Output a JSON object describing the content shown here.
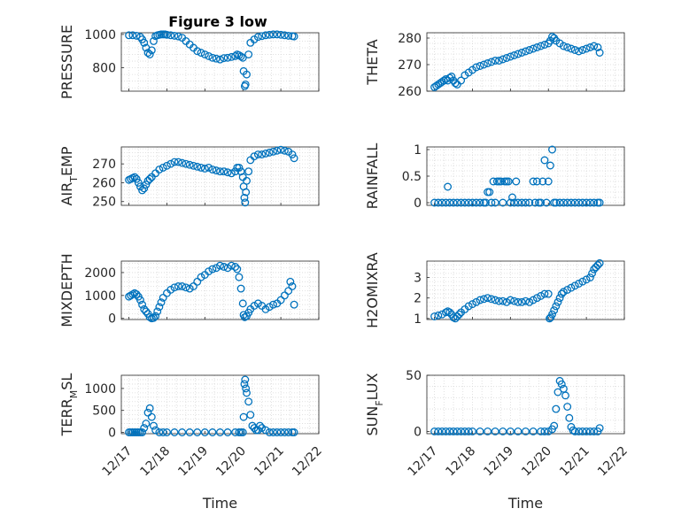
{
  "figure": {
    "title": "Figure 3 low",
    "marker_color": "#0072BD",
    "axis_color": "#262626",
    "grid_color": "#d9d9d9"
  },
  "chart_data": [
    {
      "type": "scatter",
      "id": "pressure",
      "ylabel": "PRESSURE",
      "xlabel": "",
      "ylim": [
        660,
        1010
      ],
      "yticks": [
        800,
        1000
      ],
      "show_xticklabels": false,
      "grid": true,
      "x": [
        0.0,
        0.1,
        0.2,
        0.3,
        0.35,
        0.4,
        0.45,
        0.5,
        0.55,
        0.6,
        0.65,
        0.7,
        0.75,
        0.8,
        0.85,
        0.9,
        0.95,
        1.0,
        1.1,
        1.2,
        1.3,
        1.4,
        1.5,
        1.6,
        1.7,
        1.8,
        1.9,
        2.0,
        2.1,
        2.2,
        2.3,
        2.4,
        2.5,
        2.6,
        2.7,
        2.8,
        2.85,
        2.9,
        2.95,
        3.0,
        3.02,
        3.05,
        3.07,
        3.1,
        3.15,
        3.2,
        3.3,
        3.4,
        3.5,
        3.6,
        3.7,
        3.8,
        3.9,
        4.0,
        4.1,
        4.2,
        4.3,
        4.35
      ],
      "y": [
        995,
        995,
        992,
        985,
        970,
        950,
        920,
        890,
        880,
        905,
        960,
        990,
        995,
        998,
        1000,
        1000,
        1000,
        998,
        995,
        992,
        988,
        980,
        960,
        940,
        920,
        900,
        890,
        880,
        870,
        860,
        855,
        850,
        858,
        860,
        865,
        870,
        880,
        875,
        868,
        860,
        780,
        690,
        700,
        760,
        880,
        950,
        970,
        985,
        990,
        995,
        998,
        1000,
        1000,
        998,
        995,
        992,
        990,
        988
      ]
    },
    {
      "type": "scatter",
      "id": "theta",
      "ylabel": "THETA",
      "xlabel": "",
      "ylim": [
        260,
        282
      ],
      "yticks": [
        260,
        270,
        280
      ],
      "show_xticklabels": false,
      "grid": true,
      "x": [
        0.0,
        0.05,
        0.1,
        0.15,
        0.2,
        0.25,
        0.3,
        0.35,
        0.4,
        0.45,
        0.5,
        0.55,
        0.6,
        0.7,
        0.8,
        0.9,
        1.0,
        1.1,
        1.2,
        1.3,
        1.4,
        1.5,
        1.6,
        1.7,
        1.8,
        1.9,
        2.0,
        2.1,
        2.2,
        2.3,
        2.4,
        2.5,
        2.6,
        2.7,
        2.8,
        2.9,
        3.0,
        3.05,
        3.1,
        3.15,
        3.2,
        3.3,
        3.4,
        3.5,
        3.6,
        3.7,
        3.8,
        3.9,
        4.0,
        4.1,
        4.2,
        4.3,
        4.35
      ],
      "y": [
        261.5,
        262,
        262.5,
        263,
        263.5,
        264,
        264.5,
        264,
        265,
        265.5,
        264,
        263,
        262.5,
        264,
        266,
        267,
        268,
        269,
        269.5,
        270,
        270.5,
        271,
        271.5,
        271.5,
        272,
        272.5,
        273,
        273.5,
        274,
        274.5,
        275,
        275.5,
        276,
        276.5,
        277,
        277.5,
        278,
        279,
        280.5,
        280,
        279,
        278,
        277,
        276.5,
        276,
        275.5,
        275,
        275.5,
        276,
        276.5,
        277,
        276.5,
        274.5
      ]
    },
    {
      "type": "scatter",
      "id": "air_temp",
      "ylabel": "AIR_TEMP",
      "ylabel_main": "AIR",
      "ylabel_sub": "T",
      "ylabel_rest": "EMP",
      "xlabel": "",
      "ylim": [
        248,
        279
      ],
      "yticks": [
        250,
        260,
        270
      ],
      "show_xticklabels": false,
      "grid": true,
      "x": [
        0.0,
        0.05,
        0.1,
        0.15,
        0.2,
        0.25,
        0.3,
        0.35,
        0.4,
        0.45,
        0.5,
        0.55,
        0.6,
        0.7,
        0.8,
        0.9,
        1.0,
        1.1,
        1.2,
        1.3,
        1.4,
        1.5,
        1.6,
        1.7,
        1.8,
        1.9,
        2.0,
        2.1,
        2.2,
        2.3,
        2.4,
        2.5,
        2.6,
        2.7,
        2.8,
        2.85,
        2.9,
        2.95,
        3.0,
        3.02,
        3.04,
        3.06,
        3.08,
        3.1,
        3.15,
        3.2,
        3.3,
        3.4,
        3.5,
        3.6,
        3.7,
        3.8,
        3.9,
        4.0,
        4.1,
        4.2,
        4.3,
        4.35
      ],
      "y": [
        261.5,
        262,
        262.5,
        263,
        262,
        260,
        258,
        256,
        257,
        259,
        261,
        262,
        263,
        265,
        267,
        268,
        269,
        270,
        271,
        271,
        270.5,
        270,
        269.5,
        269,
        268.5,
        268,
        267.5,
        268,
        267,
        266.5,
        266,
        266,
        265.5,
        265,
        266,
        268,
        268,
        266,
        263,
        258,
        252,
        249.5,
        255,
        261,
        266,
        272,
        274,
        275,
        275,
        275.5,
        276,
        276.5,
        277,
        277.5,
        277,
        276.5,
        275,
        273
      ]
    },
    {
      "type": "scatter",
      "id": "rainfall",
      "ylabel": "RAINFALL",
      "xlabel": "",
      "ylim": [
        -0.05,
        1.05
      ],
      "yticks": [
        0,
        0.5,
        1
      ],
      "show_xticklabels": false,
      "grid": true,
      "x": [
        0.0,
        0.1,
        0.2,
        0.3,
        0.35,
        0.4,
        0.5,
        0.6,
        0.7,
        0.8,
        0.9,
        1.0,
        1.1,
        1.2,
        1.3,
        1.35,
        1.4,
        1.45,
        1.5,
        1.55,
        1.6,
        1.65,
        1.7,
        1.75,
        1.8,
        1.85,
        1.9,
        1.95,
        2.0,
        2.05,
        2.1,
        2.15,
        2.2,
        2.3,
        2.4,
        2.5,
        2.6,
        2.65,
        2.7,
        2.75,
        2.8,
        2.85,
        2.9,
        2.95,
        3.0,
        3.05,
        3.1,
        3.15,
        3.2,
        3.3,
        3.4,
        3.5,
        3.6,
        3.7,
        3.8,
        3.9,
        4.0,
        4.1,
        4.2,
        4.3,
        4.35
      ],
      "y": [
        0,
        0,
        0,
        0,
        0.3,
        0,
        0,
        0,
        0,
        0,
        0,
        0,
        0,
        0,
        0,
        0,
        0.2,
        0.2,
        0,
        0.4,
        0,
        0.4,
        0.4,
        0.4,
        0,
        0.4,
        0.4,
        0.4,
        0,
        0.1,
        0,
        0.4,
        0,
        0,
        0,
        0,
        0.4,
        0,
        0.4,
        0,
        0,
        0.4,
        0.8,
        0,
        0.4,
        0.7,
        1.0,
        0,
        0,
        0,
        0,
        0,
        0,
        0,
        0,
        0,
        0,
        0,
        0,
        0,
        0
      ]
    },
    {
      "type": "scatter",
      "id": "mixdepth",
      "ylabel": "MIXDEPTH",
      "xlabel": "",
      "ylim": [
        -50,
        2500
      ],
      "yticks": [
        0,
        1000,
        2000
      ],
      "show_xticklabels": false,
      "grid": true,
      "x": [
        0.0,
        0.05,
        0.1,
        0.15,
        0.2,
        0.25,
        0.3,
        0.35,
        0.4,
        0.45,
        0.5,
        0.55,
        0.6,
        0.65,
        0.7,
        0.75,
        0.8,
        0.85,
        0.9,
        1.0,
        1.1,
        1.2,
        1.3,
        1.4,
        1.5,
        1.6,
        1.7,
        1.8,
        1.9,
        2.0,
        2.1,
        2.2,
        2.3,
        2.4,
        2.5,
        2.6,
        2.7,
        2.8,
        2.85,
        2.9,
        2.95,
        3.0,
        3.02,
        3.05,
        3.1,
        3.15,
        3.2,
        3.3,
        3.4,
        3.5,
        3.6,
        3.7,
        3.8,
        3.9,
        4.0,
        4.1,
        4.2,
        4.25,
        4.3,
        4.35
      ],
      "y": [
        950,
        1000,
        1050,
        1100,
        1050,
        950,
        800,
        600,
        400,
        300,
        200,
        50,
        0,
        20,
        100,
        300,
        500,
        700,
        900,
        1100,
        1250,
        1350,
        1400,
        1400,
        1350,
        1300,
        1400,
        1600,
        1800,
        1900,
        2050,
        2150,
        2200,
        2300,
        2250,
        2200,
        2300,
        2250,
        2150,
        1800,
        1300,
        650,
        150,
        50,
        100,
        250,
        400,
        550,
        650,
        550,
        400,
        500,
        600,
        650,
        800,
        1000,
        1200,
        1600,
        1400,
        600
      ]
    },
    {
      "type": "scatter",
      "id": "h2omixra",
      "ylabel": "H2OMIXRA",
      "xlabel": "",
      "ylim": [
        0.95,
        3.8
      ],
      "yticks": [
        1,
        2,
        3
      ],
      "show_xticklabels": false,
      "grid": true,
      "x": [
        0.0,
        0.1,
        0.2,
        0.3,
        0.35,
        0.4,
        0.45,
        0.5,
        0.55,
        0.6,
        0.65,
        0.7,
        0.8,
        0.9,
        1.0,
        1.1,
        1.2,
        1.3,
        1.4,
        1.5,
        1.6,
        1.7,
        1.8,
        1.9,
        2.0,
        2.1,
        2.2,
        2.3,
        2.4,
        2.5,
        2.6,
        2.7,
        2.8,
        2.9,
        3.0,
        3.03,
        3.06,
        3.1,
        3.15,
        3.2,
        3.25,
        3.3,
        3.35,
        3.4,
        3.5,
        3.6,
        3.7,
        3.8,
        3.9,
        4.0,
        4.1,
        4.15,
        4.2,
        4.25,
        4.3,
        4.35
      ],
      "y": [
        1.1,
        1.15,
        1.2,
        1.3,
        1.35,
        1.3,
        1.2,
        1.05,
        1.0,
        1.1,
        1.2,
        1.3,
        1.45,
        1.6,
        1.7,
        1.8,
        1.9,
        1.95,
        2.0,
        1.95,
        1.9,
        1.85,
        1.85,
        1.8,
        1.9,
        1.85,
        1.8,
        1.8,
        1.85,
        1.8,
        1.9,
        2.0,
        2.1,
        2.2,
        2.2,
        1.0,
        1.05,
        1.2,
        1.4,
        1.6,
        1.8,
        2.0,
        2.2,
        2.3,
        2.4,
        2.5,
        2.6,
        2.7,
        2.8,
        2.9,
        3.0,
        3.2,
        3.4,
        3.5,
        3.6,
        3.7
      ]
    },
    {
      "type": "scatter",
      "id": "terr_msl",
      "ylabel": "TERR_MSL",
      "ylabel_main": "TERR",
      "ylabel_sub": "M",
      "ylabel_rest": "SL",
      "xlabel": "Time",
      "ylim": [
        -30,
        1300
      ],
      "yticks": [
        0,
        500,
        1000
      ],
      "xticklabels": [
        "12/17",
        "12/18",
        "12/19",
        "12/20",
        "12/21",
        "12/22"
      ],
      "grid": true,
      "x": [
        0.0,
        0.05,
        0.1,
        0.15,
        0.2,
        0.25,
        0.3,
        0.35,
        0.4,
        0.45,
        0.5,
        0.55,
        0.6,
        0.65,
        0.7,
        0.8,
        0.9,
        1.0,
        1.2,
        1.4,
        1.6,
        1.8,
        2.0,
        2.2,
        2.4,
        2.6,
        2.8,
        2.9,
        2.95,
        3.0,
        3.02,
        3.04,
        3.06,
        3.08,
        3.1,
        3.15,
        3.2,
        3.25,
        3.3,
        3.35,
        3.4,
        3.45,
        3.5,
        3.6,
        3.7,
        3.8,
        3.9,
        4.0,
        4.1,
        4.2,
        4.3,
        4.35
      ],
      "y": [
        0,
        0,
        0,
        0,
        0,
        0,
        0,
        0,
        100,
        200,
        450,
        550,
        350,
        150,
        50,
        0,
        0,
        0,
        0,
        0,
        0,
        0,
        0,
        0,
        0,
        0,
        0,
        0,
        0,
        0,
        350,
        1100,
        1200,
        1000,
        900,
        700,
        400,
        150,
        100,
        50,
        50,
        150,
        100,
        50,
        0,
        0,
        0,
        0,
        0,
        0,
        0,
        0
      ]
    },
    {
      "type": "scatter",
      "id": "sun_flux",
      "ylabel": "SUN_FLUX",
      "ylabel_main": "SUN",
      "ylabel_sub": "F",
      "ylabel_rest": "LUX",
      "xlabel": "Time",
      "ylim": [
        -2,
        50
      ],
      "yticks": [
        0,
        50
      ],
      "xticklabels": [
        "12/17",
        "12/18",
        "12/19",
        "12/20",
        "12/21",
        "12/22"
      ],
      "grid": true,
      "x": [
        0.0,
        0.1,
        0.2,
        0.3,
        0.4,
        0.5,
        0.6,
        0.7,
        0.8,
        0.9,
        1.0,
        1.2,
        1.4,
        1.6,
        1.8,
        2.0,
        2.2,
        2.4,
        2.6,
        2.8,
        2.9,
        3.0,
        3.1,
        3.15,
        3.2,
        3.25,
        3.3,
        3.35,
        3.4,
        3.45,
        3.5,
        3.55,
        3.6,
        3.65,
        3.7,
        3.8,
        3.9,
        4.0,
        4.1,
        4.2,
        4.3,
        4.35
      ],
      "y": [
        0,
        0,
        0,
        0,
        0,
        0,
        0,
        0,
        0,
        0,
        0,
        0,
        0,
        0,
        0,
        0,
        0,
        0,
        0,
        0,
        0,
        0,
        2,
        5,
        20,
        35,
        45,
        42,
        38,
        32,
        22,
        12,
        4,
        1,
        0,
        0,
        0,
        0,
        0,
        0,
        0,
        3
      ]
    }
  ]
}
